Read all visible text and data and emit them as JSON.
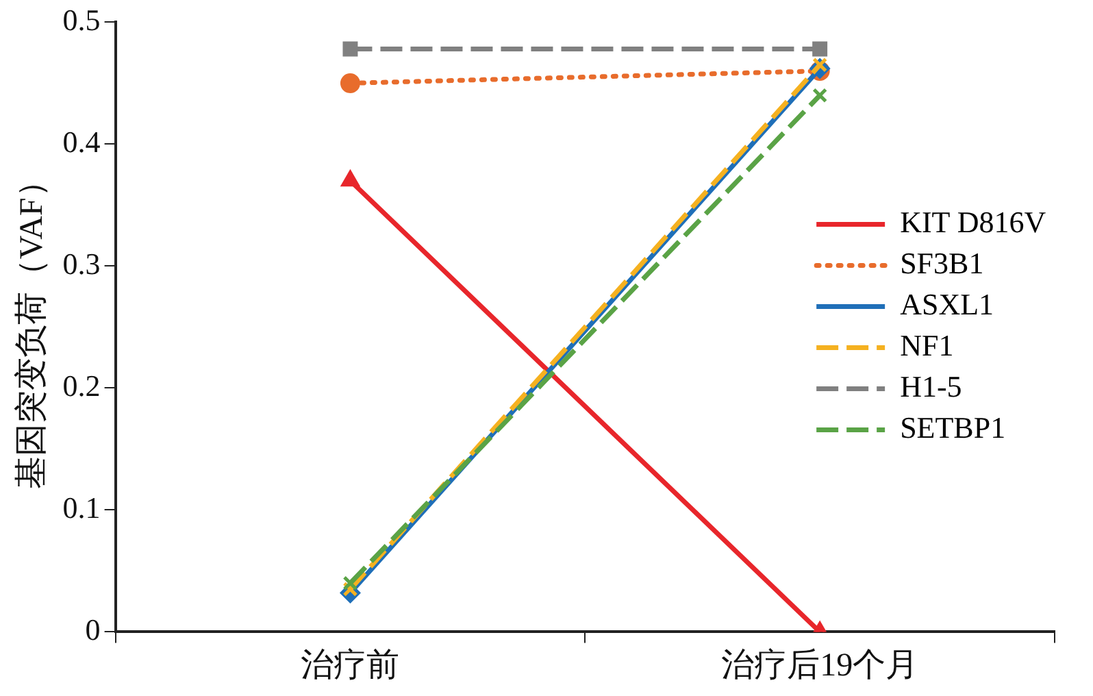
{
  "chart_data": {
    "type": "line",
    "ylabel": "基因突变负荷（VAF）",
    "categories": [
      "治疗前",
      "治疗后19个月"
    ],
    "ylim": [
      0,
      0.5
    ],
    "yticks": [
      0,
      0.1,
      0.2,
      0.3,
      0.4,
      0.5
    ],
    "grid": false,
    "legend": "right",
    "series": [
      {
        "name": "KIT D816V",
        "color": "#e8262b",
        "values": [
          0.37,
          0
        ],
        "marker": "triangle",
        "line_style": "solid"
      },
      {
        "name": "SF3B1",
        "color": "#e86c2c",
        "values": [
          0.45,
          0.46
        ],
        "marker": "circle",
        "line_style": "dotted"
      },
      {
        "name": "ASXL1",
        "color": "#1f6fb8",
        "values": [
          0.032,
          0.462
        ],
        "marker": "diamond",
        "line_style": "solid"
      },
      {
        "name": "NF1",
        "color": "#f5b120",
        "values": [
          0.035,
          0.465
        ],
        "marker": "cross",
        "line_style": "dashed"
      },
      {
        "name": "H1-5",
        "color": "#808080",
        "values": [
          0.478,
          0.478
        ],
        "marker": "square",
        "line_style": "dashed"
      },
      {
        "name": "SETBP1",
        "color": "#5aa346",
        "values": [
          0.04,
          0.44
        ],
        "marker": "cross",
        "line_style": "dashed"
      }
    ]
  }
}
